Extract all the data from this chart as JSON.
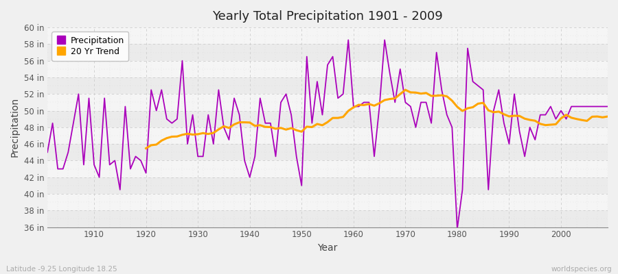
{
  "title": "Yearly Total Precipitation 1901 - 2009",
  "xlabel": "Year",
  "ylabel": "Precipitation",
  "subtitle": "Latitude -9.25 Longitude 18.25",
  "watermark": "worldspecies.org",
  "ylim": [
    36,
    60
  ],
  "ytick_step": 2,
  "start_year": 1901,
  "precip_color": "#AA00BB",
  "trend_color": "#FFA500",
  "bg_color": "#F0F0F0",
  "plot_bg_color": "#FFFFFF",
  "band_color1": "#EBEBEB",
  "band_color2": "#F5F5F5",
  "grid_color": "#CCCCCC",
  "legend_labels": [
    "Precipitation",
    "20 Yr Trend"
  ],
  "precipitation": [
    45.0,
    48.5,
    43.0,
    43.0,
    45.0,
    48.5,
    52.0,
    43.5,
    51.5,
    43.5,
    42.0,
    51.5,
    43.5,
    44.0,
    40.5,
    50.5,
    43.0,
    44.5,
    44.0,
    42.5,
    52.5,
    50.0,
    52.5,
    49.0,
    48.5,
    49.0,
    56.0,
    46.0,
    49.5,
    44.5,
    44.5,
    49.5,
    46.0,
    52.5,
    48.0,
    46.5,
    51.5,
    49.5,
    44.0,
    42.0,
    44.5,
    51.5,
    48.5,
    48.5,
    44.5,
    51.0,
    52.0,
    49.5,
    44.5,
    41.0,
    56.5,
    48.5,
    53.5,
    49.5,
    55.5,
    56.5,
    51.5,
    52.0,
    58.5,
    50.5,
    50.5,
    51.0,
    51.0,
    44.5,
    50.5,
    58.5,
    54.5,
    51.0,
    55.0,
    51.0,
    50.5,
    48.0,
    51.0,
    51.0,
    48.5,
    57.0,
    52.5,
    49.5,
    48.0,
    35.8,
    40.5,
    57.5,
    53.5,
    53.0,
    52.5,
    40.5,
    50.0,
    52.5,
    48.5,
    46.0,
    52.0,
    47.5,
    44.5,
    48.0,
    46.5,
    49.5,
    49.5,
    50.5,
    49.0,
    50.0,
    49.0,
    50.5,
    50.5,
    50.5,
    50.5,
    50.5,
    50.5,
    50.5,
    50.5
  ]
}
